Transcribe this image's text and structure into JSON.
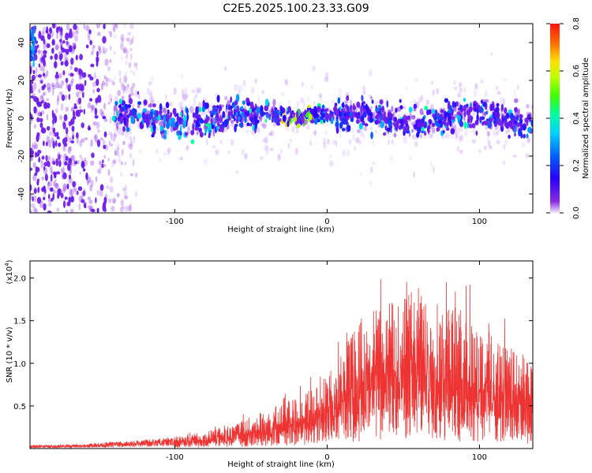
{
  "title": "C2E5.2025.100.23.33.G09",
  "colors": {
    "snr_line": "#ee3333",
    "axis": "#000000",
    "background": "#ffffff"
  },
  "chart_data": [
    {
      "type": "heatmap",
      "name": "spectrogram",
      "xlabel": "Height of straight line (km)",
      "ylabel": "Frequency (Hz)",
      "xlim": [
        -195,
        135
      ],
      "ylim": [
        -50,
        50
      ],
      "x_ticks": [
        -100,
        0,
        100
      ],
      "x_tick_labels": [
        "-100",
        "0",
        "100"
      ],
      "y_ticks": [
        -40,
        -20,
        0,
        20,
        40
      ],
      "y_tick_labels": [
        "-40",
        "-20",
        "0",
        "20",
        "40"
      ],
      "colorbar": {
        "label": "Normalized spectral amplitude",
        "range": [
          0.0,
          0.8
        ],
        "ticks": [
          0.0,
          0.2,
          0.4,
          0.6,
          0.8
        ],
        "tick_labels": [
          "0.0",
          "0.2",
          "0.4",
          "0.6",
          "0.8"
        ]
      },
      "description_band": {
        "center_freq_hz": 0,
        "half_width_hz": 10,
        "onset_km": -140,
        "peak_km": -20
      }
    },
    {
      "type": "line",
      "name": "snr",
      "xlabel": "Height of straight line (km)",
      "ylabel": "SNR (10 * v/v)",
      "y_multiplier_label": "(x10",
      "y_multiplier_exp": "4",
      "y_multiplier_close": ")",
      "xlim": [
        -195,
        135
      ],
      "ylim": [
        0,
        22000
      ],
      "x_ticks": [
        -100,
        0,
        100
      ],
      "x_tick_labels": [
        "-100",
        "0",
        "100"
      ],
      "y_ticks": [
        5000,
        10000,
        15000,
        20000
      ],
      "y_tick_labels": [
        "0.5",
        "1.0",
        "1.5",
        "2.0"
      ],
      "envelope": {
        "x": [
          -195,
          -160,
          -140,
          -120,
          -100,
          -80,
          -60,
          -40,
          -20,
          -10,
          0,
          10,
          20,
          30,
          40,
          50,
          60,
          70,
          80,
          90,
          100,
          110,
          120,
          135
        ],
        "y": [
          400,
          500,
          800,
          1000,
          1400,
          2000,
          3000,
          4500,
          6000,
          7000,
          9000,
          12000,
          15000,
          16500,
          17500,
          18500,
          19000,
          18500,
          17500,
          16000,
          15000,
          13500,
          12000,
          11000
        ]
      }
    }
  ]
}
